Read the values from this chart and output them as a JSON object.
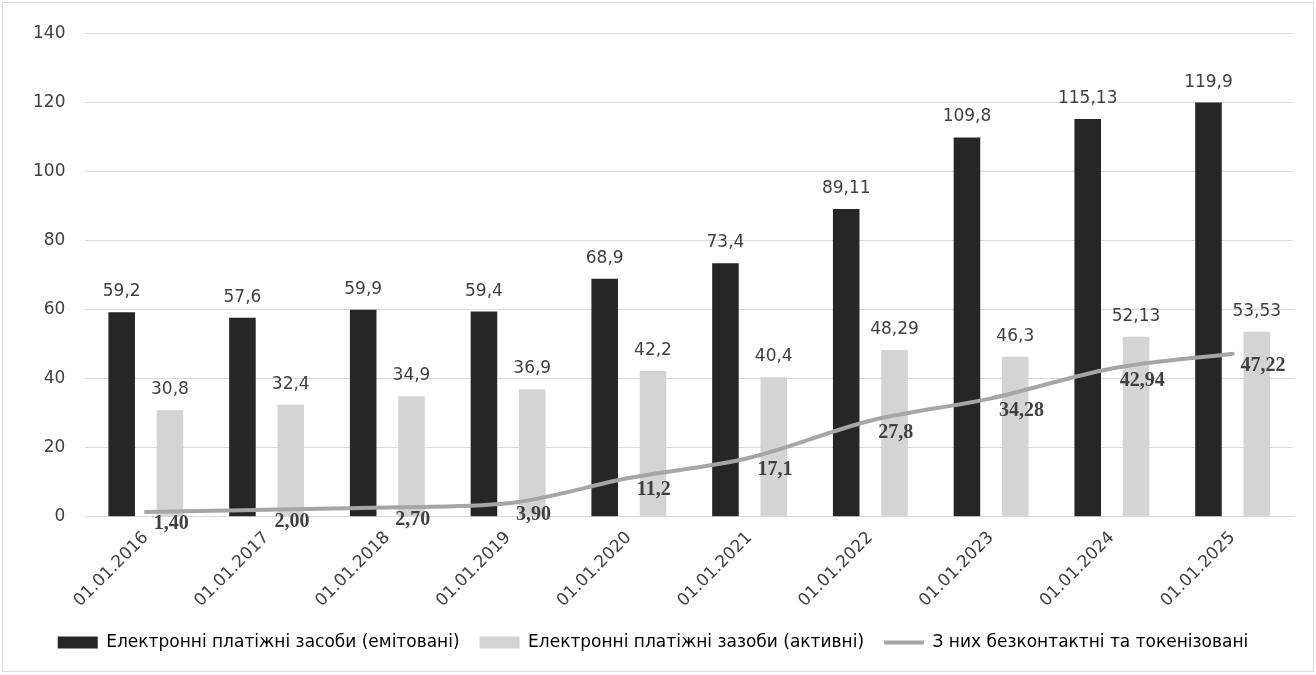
{
  "chart_data": {
    "type": "bar",
    "categories": [
      "01.01.2016",
      "01.01.2017",
      "01.01.2018",
      "01.01.2019",
      "01.01.2020",
      "01.01.2021",
      "01.01.2022",
      "01.01.2023",
      "01.01.2024",
      "01.01.2025"
    ],
    "series": [
      {
        "name": "Електронні платіжні засоби (емітовані)",
        "color": "#262626",
        "values": [
          59.2,
          57.6,
          59.9,
          59.4,
          68.9,
          73.4,
          89.11,
          109.8,
          115.13,
          119.9
        ],
        "value_labels": [
          "59,2",
          "57,6",
          "59,9",
          "59,4",
          "68,9",
          "73,4",
          "89,11",
          "109,8",
          "115,13",
          "119,9"
        ]
      },
      {
        "name": "Електронні платіжні зазоби (активні)",
        "color": "#d4d4d4",
        "values": [
          30.8,
          32.4,
          34.9,
          36.9,
          42.2,
          40.4,
          48.29,
          46.3,
          52.13,
          53.53
        ],
        "value_labels": [
          "30,8",
          "32,4",
          "34,9",
          "36,9",
          "42,2",
          "40,4",
          "48,29",
          "46,3",
          "52,13",
          "53,53"
        ]
      },
      {
        "name": "З них безконтактні та токенізовані",
        "type": "line",
        "color": "#a6a6a6",
        "values": [
          1.4,
          2.0,
          2.7,
          3.9,
          11.2,
          17.1,
          27.8,
          34.28,
          42.94,
          47.22
        ],
        "value_labels": [
          "1,40",
          "2,00",
          "2,70",
          "3,90",
          "11,2",
          "17,1",
          "27,8",
          "34,28",
          "42,94",
          "47,22"
        ]
      }
    ],
    "ylim": [
      0,
      140
    ],
    "yticks": [
      0,
      20,
      40,
      60,
      80,
      100,
      120,
      140
    ],
    "grid": "y",
    "legend": "bottom",
    "marker": "none",
    "line_style": "solid"
  }
}
